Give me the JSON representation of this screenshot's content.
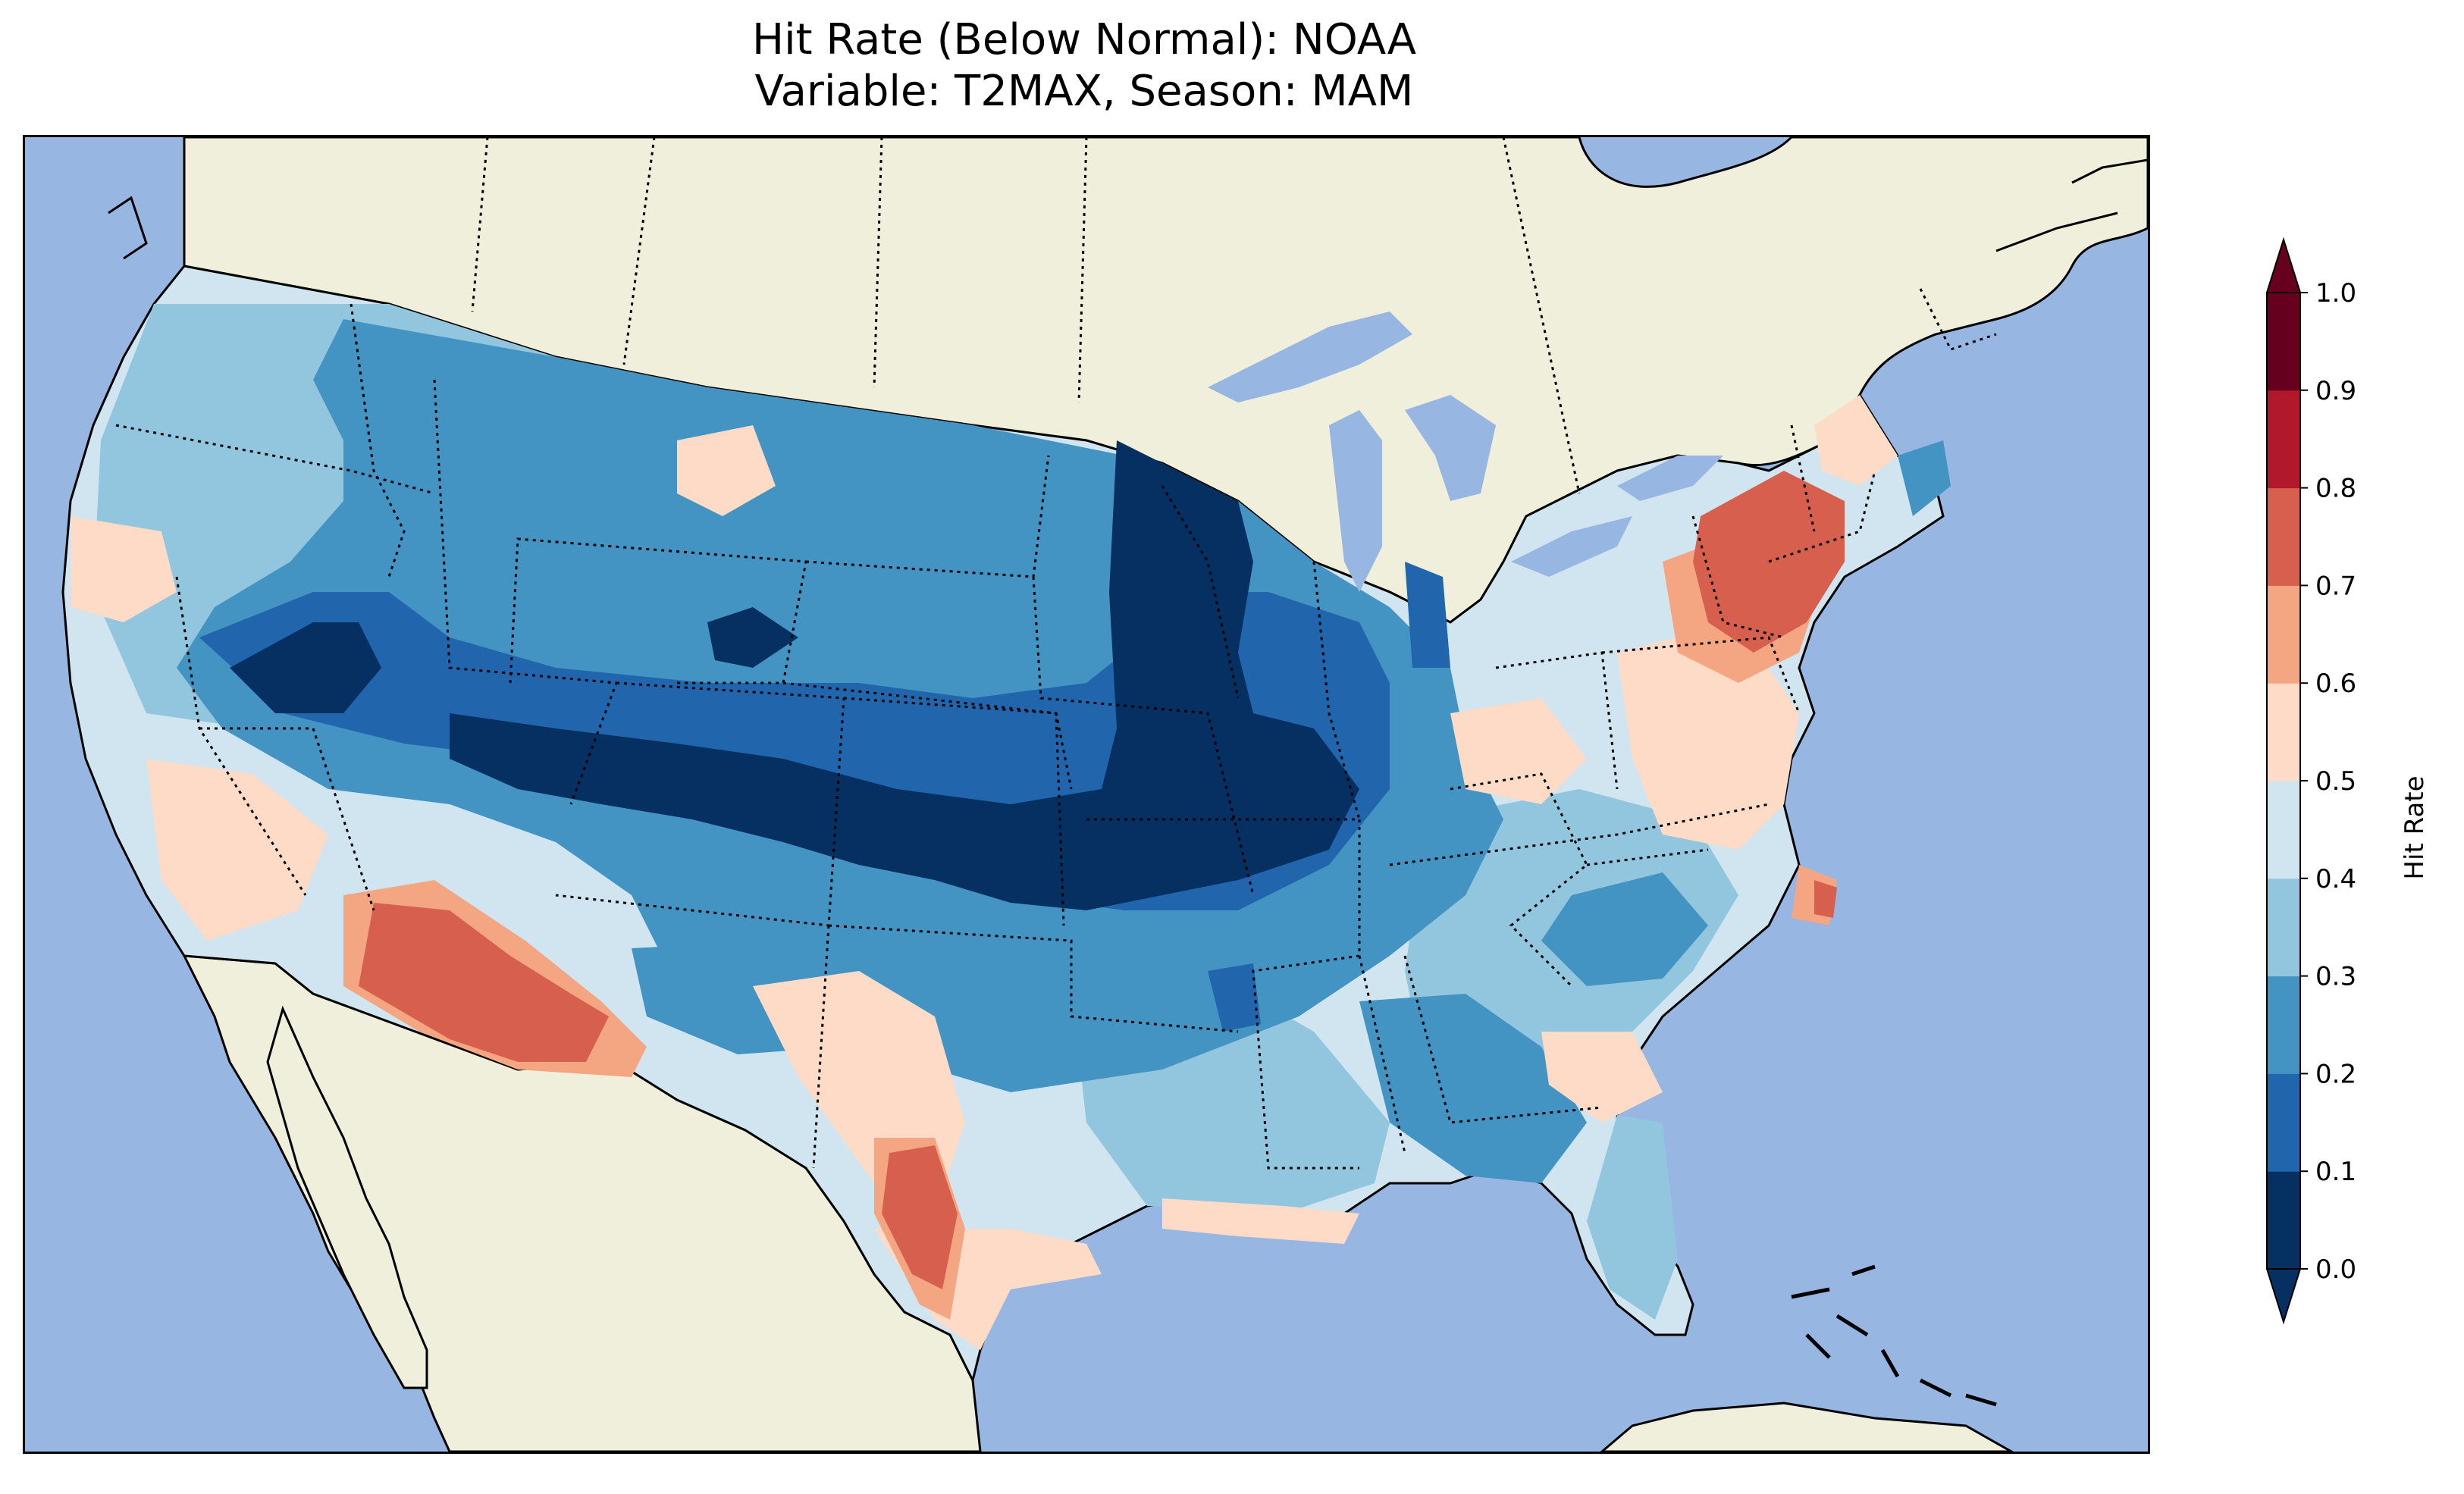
{
  "title": {
    "line1": "Hit Rate (Below Normal): NOAA",
    "line2": "Variable: T2MAX, Season: MAM"
  },
  "colorbar": {
    "label": "Hit Rate",
    "ticks": [
      "0.0",
      "0.1",
      "0.2",
      "0.3",
      "0.4",
      "0.5",
      "0.6",
      "0.7",
      "0.8",
      "0.9",
      "1.0"
    ],
    "levels": [
      {
        "range": "0.0-0.1",
        "color": "#053061"
      },
      {
        "range": "0.1-0.2",
        "color": "#2166ac"
      },
      {
        "range": "0.2-0.3",
        "color": "#4393c3"
      },
      {
        "range": "0.3-0.4",
        "color": "#92c5de"
      },
      {
        "range": "0.4-0.5",
        "color": "#d1e5f0"
      },
      {
        "range": "0.5-0.6",
        "color": "#fddbc7"
      },
      {
        "range": "0.6-0.7",
        "color": "#f4a582"
      },
      {
        "range": "0.7-0.8",
        "color": "#d6604d"
      },
      {
        "range": "0.8-0.9",
        "color": "#b2182b"
      },
      {
        "range": "0.9-1.0",
        "color": "#67001f"
      }
    ],
    "extend": "both"
  },
  "colors": {
    "ocean": "#97b6e1",
    "land": "#efefdb"
  }
}
